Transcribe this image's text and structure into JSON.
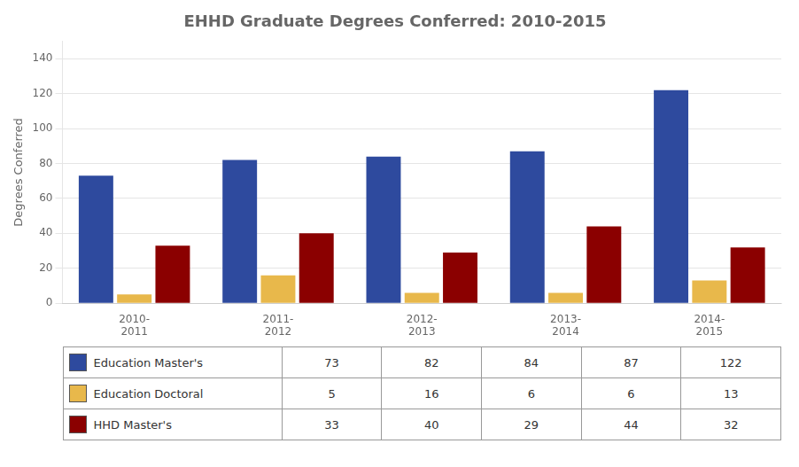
{
  "chart_data": {
    "type": "bar",
    "title": "EHHD Graduate Degrees Conferred: 2010-2015",
    "ylabel": "Degrees Conferred",
    "categories": [
      "2010-\n2011",
      "2011-\n2012",
      "2012-\n2013",
      "2013-\n2014",
      "2014-\n2015"
    ],
    "series": [
      {
        "name": "Education Master's",
        "color": "#2E4A9E",
        "values": [
          73,
          82,
          84,
          87,
          122
        ]
      },
      {
        "name": "Education Doctoral",
        "color": "#E8B84B",
        "values": [
          5,
          16,
          6,
          6,
          13
        ]
      },
      {
        "name": "HHD Master's",
        "color": "#8B0000",
        "values": [
          33,
          40,
          29,
          44,
          32
        ]
      }
    ],
    "ylim": [
      0,
      150
    ],
    "yticks": [
      0,
      20,
      40,
      60,
      80,
      100,
      120,
      140
    ],
    "grid": true
  }
}
